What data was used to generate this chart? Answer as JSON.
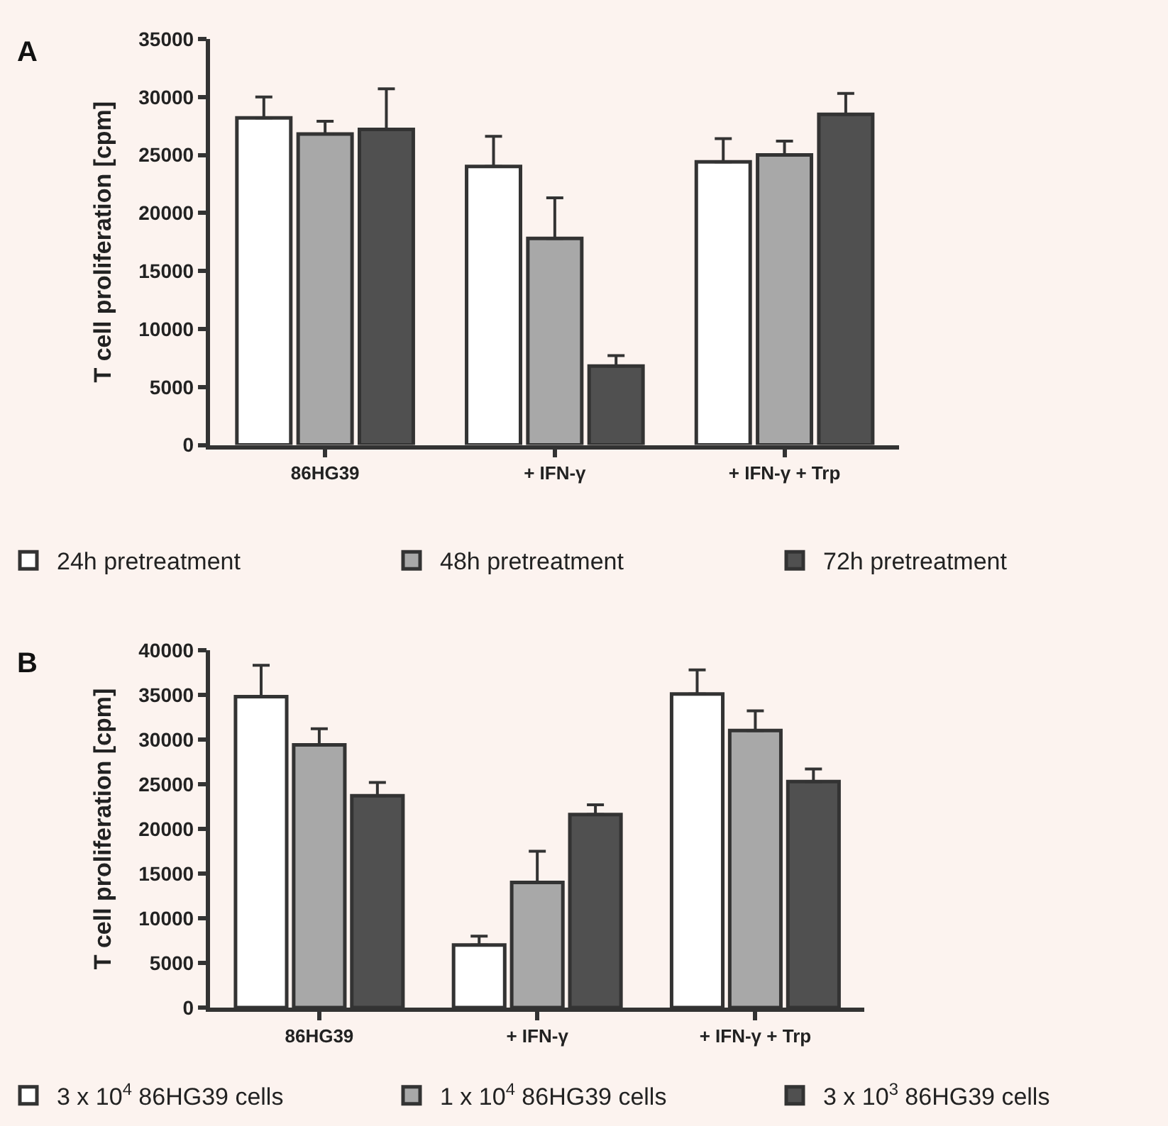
{
  "chart_data": [
    {
      "type": "bar",
      "title": "A",
      "ylabel": "T cell proliferation [cpm]",
      "categories": [
        "86HG39",
        "+ IFN-γ",
        "+ IFN-γ + Trp"
      ],
      "ylim": [
        0,
        35000
      ],
      "yticks": [
        0,
        5000,
        10000,
        15000,
        20000,
        25000,
        30000,
        35000
      ],
      "grid": false,
      "legend": "bottom",
      "series": [
        {
          "name": "24h pretreatment",
          "color": "#ffffff",
          "values": [
            28200,
            24000,
            24400
          ],
          "errors": [
            [
              28200,
              30000
            ],
            [
              24000,
              26600
            ],
            [
              24400,
              26400
            ]
          ]
        },
        {
          "name": "48h pretreatment",
          "color": "#a8a8a8",
          "values": [
            26800,
            17800,
            25000
          ],
          "errors": [
            [
              26800,
              27900
            ],
            [
              17800,
              21300
            ],
            [
              25000,
              26200
            ]
          ]
        },
        {
          "name": "72h pretreatment",
          "color": "#505050",
          "values": [
            27200,
            6800,
            28500
          ],
          "errors": [
            [
              27200,
              30700
            ],
            [
              6800,
              7700
            ],
            [
              28500,
              30300
            ]
          ]
        }
      ]
    },
    {
      "type": "bar",
      "title": "B",
      "ylabel": "T cell proliferation [cpm]",
      "categories": [
        "86HG39",
        "+ IFN-γ",
        "+ IFN-γ + Trp"
      ],
      "ylim": [
        0,
        40000
      ],
      "yticks": [
        0,
        5000,
        10000,
        15000,
        20000,
        25000,
        30000,
        35000,
        40000
      ],
      "grid": false,
      "legend": "bottom",
      "series": [
        {
          "name": "3 x 10$^{4}$ 86HG39 cells",
          "color": "#ffffff",
          "values": [
            34800,
            7000,
            35100
          ],
          "errors": [
            [
              34800,
              38300
            ],
            [
              7000,
              8000
            ],
            [
              35100,
              37800
            ]
          ]
        },
        {
          "name": "1 x 10$^{4}$ 86HG39 cells",
          "color": "#a8a8a8",
          "values": [
            29400,
            14000,
            31000
          ],
          "errors": [
            [
              29400,
              31200
            ],
            [
              14000,
              17500
            ],
            [
              31000,
              33200
            ]
          ]
        },
        {
          "name": "3 x 10$^{3}$ 86HG39 cells",
          "color": "#505050",
          "values": [
            23700,
            21600,
            25300
          ],
          "errors": [
            [
              23700,
              25200
            ],
            [
              21600,
              22700
            ],
            [
              25300,
              26700
            ]
          ]
        }
      ]
    }
  ]
}
